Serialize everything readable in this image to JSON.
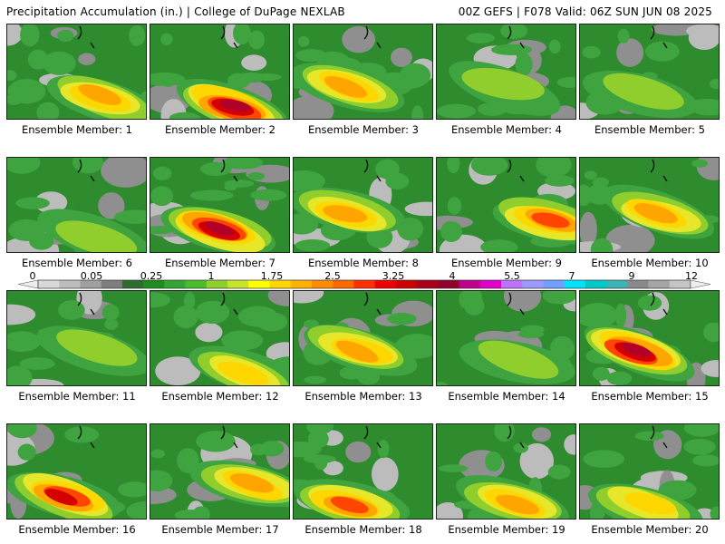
{
  "header": {
    "title": "Precipitation Accumulation (in.) | College of DuPage NEXLAB",
    "run_info": "00Z GEFS | F078 Valid: 06Z SUN JUN 08 2025"
  },
  "members": [
    {
      "label": "Ensemble Member: 1",
      "max": 3.5
    },
    {
      "label": "Ensemble Member: 2",
      "max": 5.5
    },
    {
      "label": "Ensemble Member: 3",
      "max": 3.5
    },
    {
      "label": "Ensemble Member: 4",
      "max": 1.5
    },
    {
      "label": "Ensemble Member: 5",
      "max": 1.5
    },
    {
      "label": "Ensemble Member: 6",
      "max": 1.5
    },
    {
      "label": "Ensemble Member: 7",
      "max": 5.5
    },
    {
      "label": "Ensemble Member: 8",
      "max": 3.5
    },
    {
      "label": "Ensemble Member: 9",
      "max": 4
    },
    {
      "label": "Ensemble Member: 10",
      "max": 3.25
    },
    {
      "label": "Ensemble Member: 11",
      "max": 1.5
    },
    {
      "label": "Ensemble Member: 12",
      "max": 2.5
    },
    {
      "label": "Ensemble Member: 13",
      "max": 3.5
    },
    {
      "label": "Ensemble Member: 14",
      "max": 1.75
    },
    {
      "label": "Ensemble Member: 15",
      "max": 5.5
    },
    {
      "label": "Ensemble Member: 16",
      "max": 5
    },
    {
      "label": "Ensemble Member: 17",
      "max": 3.25
    },
    {
      "label": "Ensemble Member: 18",
      "max": 4
    },
    {
      "label": "Ensemble Member: 19",
      "max": 3.25
    },
    {
      "label": "Ensemble Member: 20",
      "max": 2.5
    }
  ],
  "colorbar": {
    "tick_labels": [
      "0",
      "0.05",
      "0.25",
      "1",
      "1.75",
      "2.5",
      "3.25",
      "4",
      "5.5",
      "7",
      "9",
      "12"
    ],
    "colors": [
      "#d9d9d9",
      "#bdbdbd",
      "#a0a0a0",
      "#7e7e7e",
      "#2e6b2e",
      "#1f8b1f",
      "#33a532",
      "#4cbb2c",
      "#8fd02a",
      "#c9e22a",
      "#ffff00",
      "#ffd700",
      "#ffb000",
      "#ff8c00",
      "#ff6a00",
      "#ff3000",
      "#ee0000",
      "#cc0000",
      "#a80018",
      "#90002a",
      "#c0008a",
      "#e000c8",
      "#c070ff",
      "#9b9bff",
      "#6fa0ff",
      "#00e0ff",
      "#00c8c8",
      "#3cb4b4",
      "#8a8a8a",
      "#a5a5a5",
      "#c5c5c5"
    ]
  }
}
